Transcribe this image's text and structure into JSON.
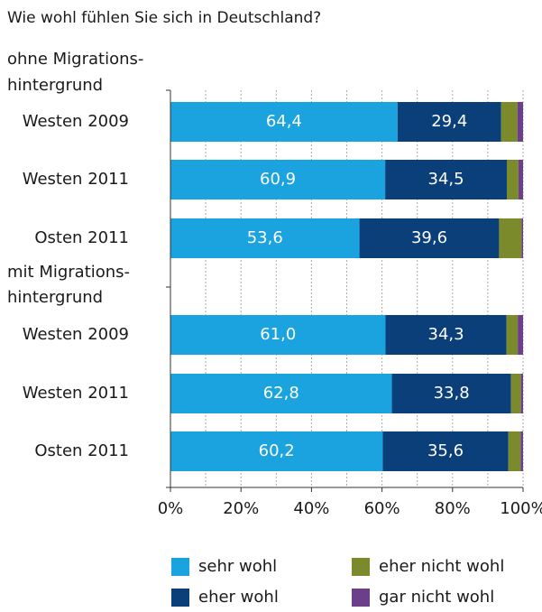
{
  "chart_data": {
    "type": "stacked-bar-horizontal",
    "title": "Wie wohl fühlen Sie sich in Deutschland?",
    "groups": [
      {
        "lines": [
          "ohne Migrations-",
          "hintergrund"
        ]
      },
      {
        "lines": [
          "mit Migrations-",
          "hintergrund"
        ]
      }
    ],
    "categories": [
      "Westen 2009",
      "Westen 2011",
      "Osten 2011",
      null,
      "Westen 2009",
      "Westen 2011",
      "Osten 2011"
    ],
    "series": [
      {
        "name": "sehr wohl",
        "color": "#1aa3de",
        "values": [
          64.4,
          60.9,
          53.6,
          null,
          61.0,
          62.8,
          60.2
        ],
        "value_labels": [
          "64,4",
          "60,9",
          "53,6",
          null,
          "61,0",
          "62,8",
          "60,2"
        ]
      },
      {
        "name": "eher wohl",
        "color": "#0b3f7a",
        "values": [
          29.4,
          34.5,
          39.6,
          null,
          34.3,
          33.8,
          35.6
        ],
        "value_labels": [
          "29,4",
          "34,5",
          "39,6",
          null,
          "34,3",
          "33,8",
          "35,6"
        ]
      },
      {
        "name": "eher nicht wohl",
        "color": "#7b8a2a",
        "values": [
          4.6,
          3.3,
          6.4,
          null,
          3.2,
          2.8,
          3.5
        ]
      },
      {
        "name": "gar nicht wohl",
        "color": "#6b3f8a",
        "values": [
          1.6,
          1.3,
          0.4,
          null,
          1.5,
          0.6,
          0.7
        ]
      }
    ],
    "xlim": [
      0,
      100
    ],
    "xticks": [
      {
        "value": 0,
        "label": "0%"
      },
      {
        "value": 20,
        "label": "20%"
      },
      {
        "value": 40,
        "label": "40%"
      },
      {
        "value": 60,
        "label": "60%"
      },
      {
        "value": 80,
        "label": "80%"
      },
      {
        "value": 100,
        "label": "100%"
      }
    ],
    "xgrid": [
      10,
      20,
      30,
      40,
      50,
      60,
      70,
      80,
      90,
      100
    ],
    "grid": true
  }
}
